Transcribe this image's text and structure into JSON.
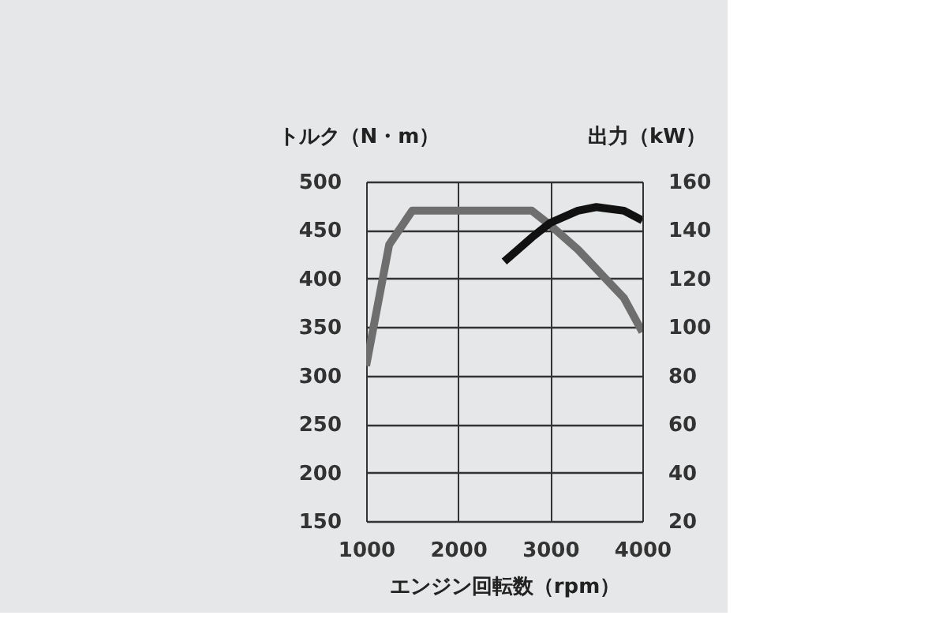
{
  "chart_data": {
    "type": "line",
    "xlabel": "エンジン回転数（rpm）",
    "ylabel": "トルク（N・m）",
    "y2label": "出力（kW）",
    "xlim": [
      1000,
      4000
    ],
    "xticks": [
      1000,
      2000,
      3000,
      4000
    ],
    "ylim": [
      150,
      500
    ],
    "yticks": [
      150,
      200,
      250,
      300,
      350,
      400,
      450,
      500
    ],
    "y2lim": [
      20,
      160
    ],
    "y2ticks": [
      20,
      40,
      60,
      80,
      100,
      120,
      140,
      160
    ],
    "grid": true,
    "marker": "none",
    "line_style": "solid",
    "series": [
      {
        "color": "#6e6e6e",
        "x": [
          1000,
          1250,
          1500,
          2800,
          3000,
          3300,
          3800,
          4000
        ],
        "values": [
          310,
          435,
          470,
          470,
          455,
          430,
          380,
          345
        ]
      },
      {
        "color": "#111111",
        "axis": "y2",
        "x": [
          2500,
          2800,
          3000,
          3300,
          3500,
          3800,
          4000
        ],
        "values": [
          127,
          137,
          143,
          148,
          149.5,
          148,
          144
        ]
      }
    ]
  }
}
